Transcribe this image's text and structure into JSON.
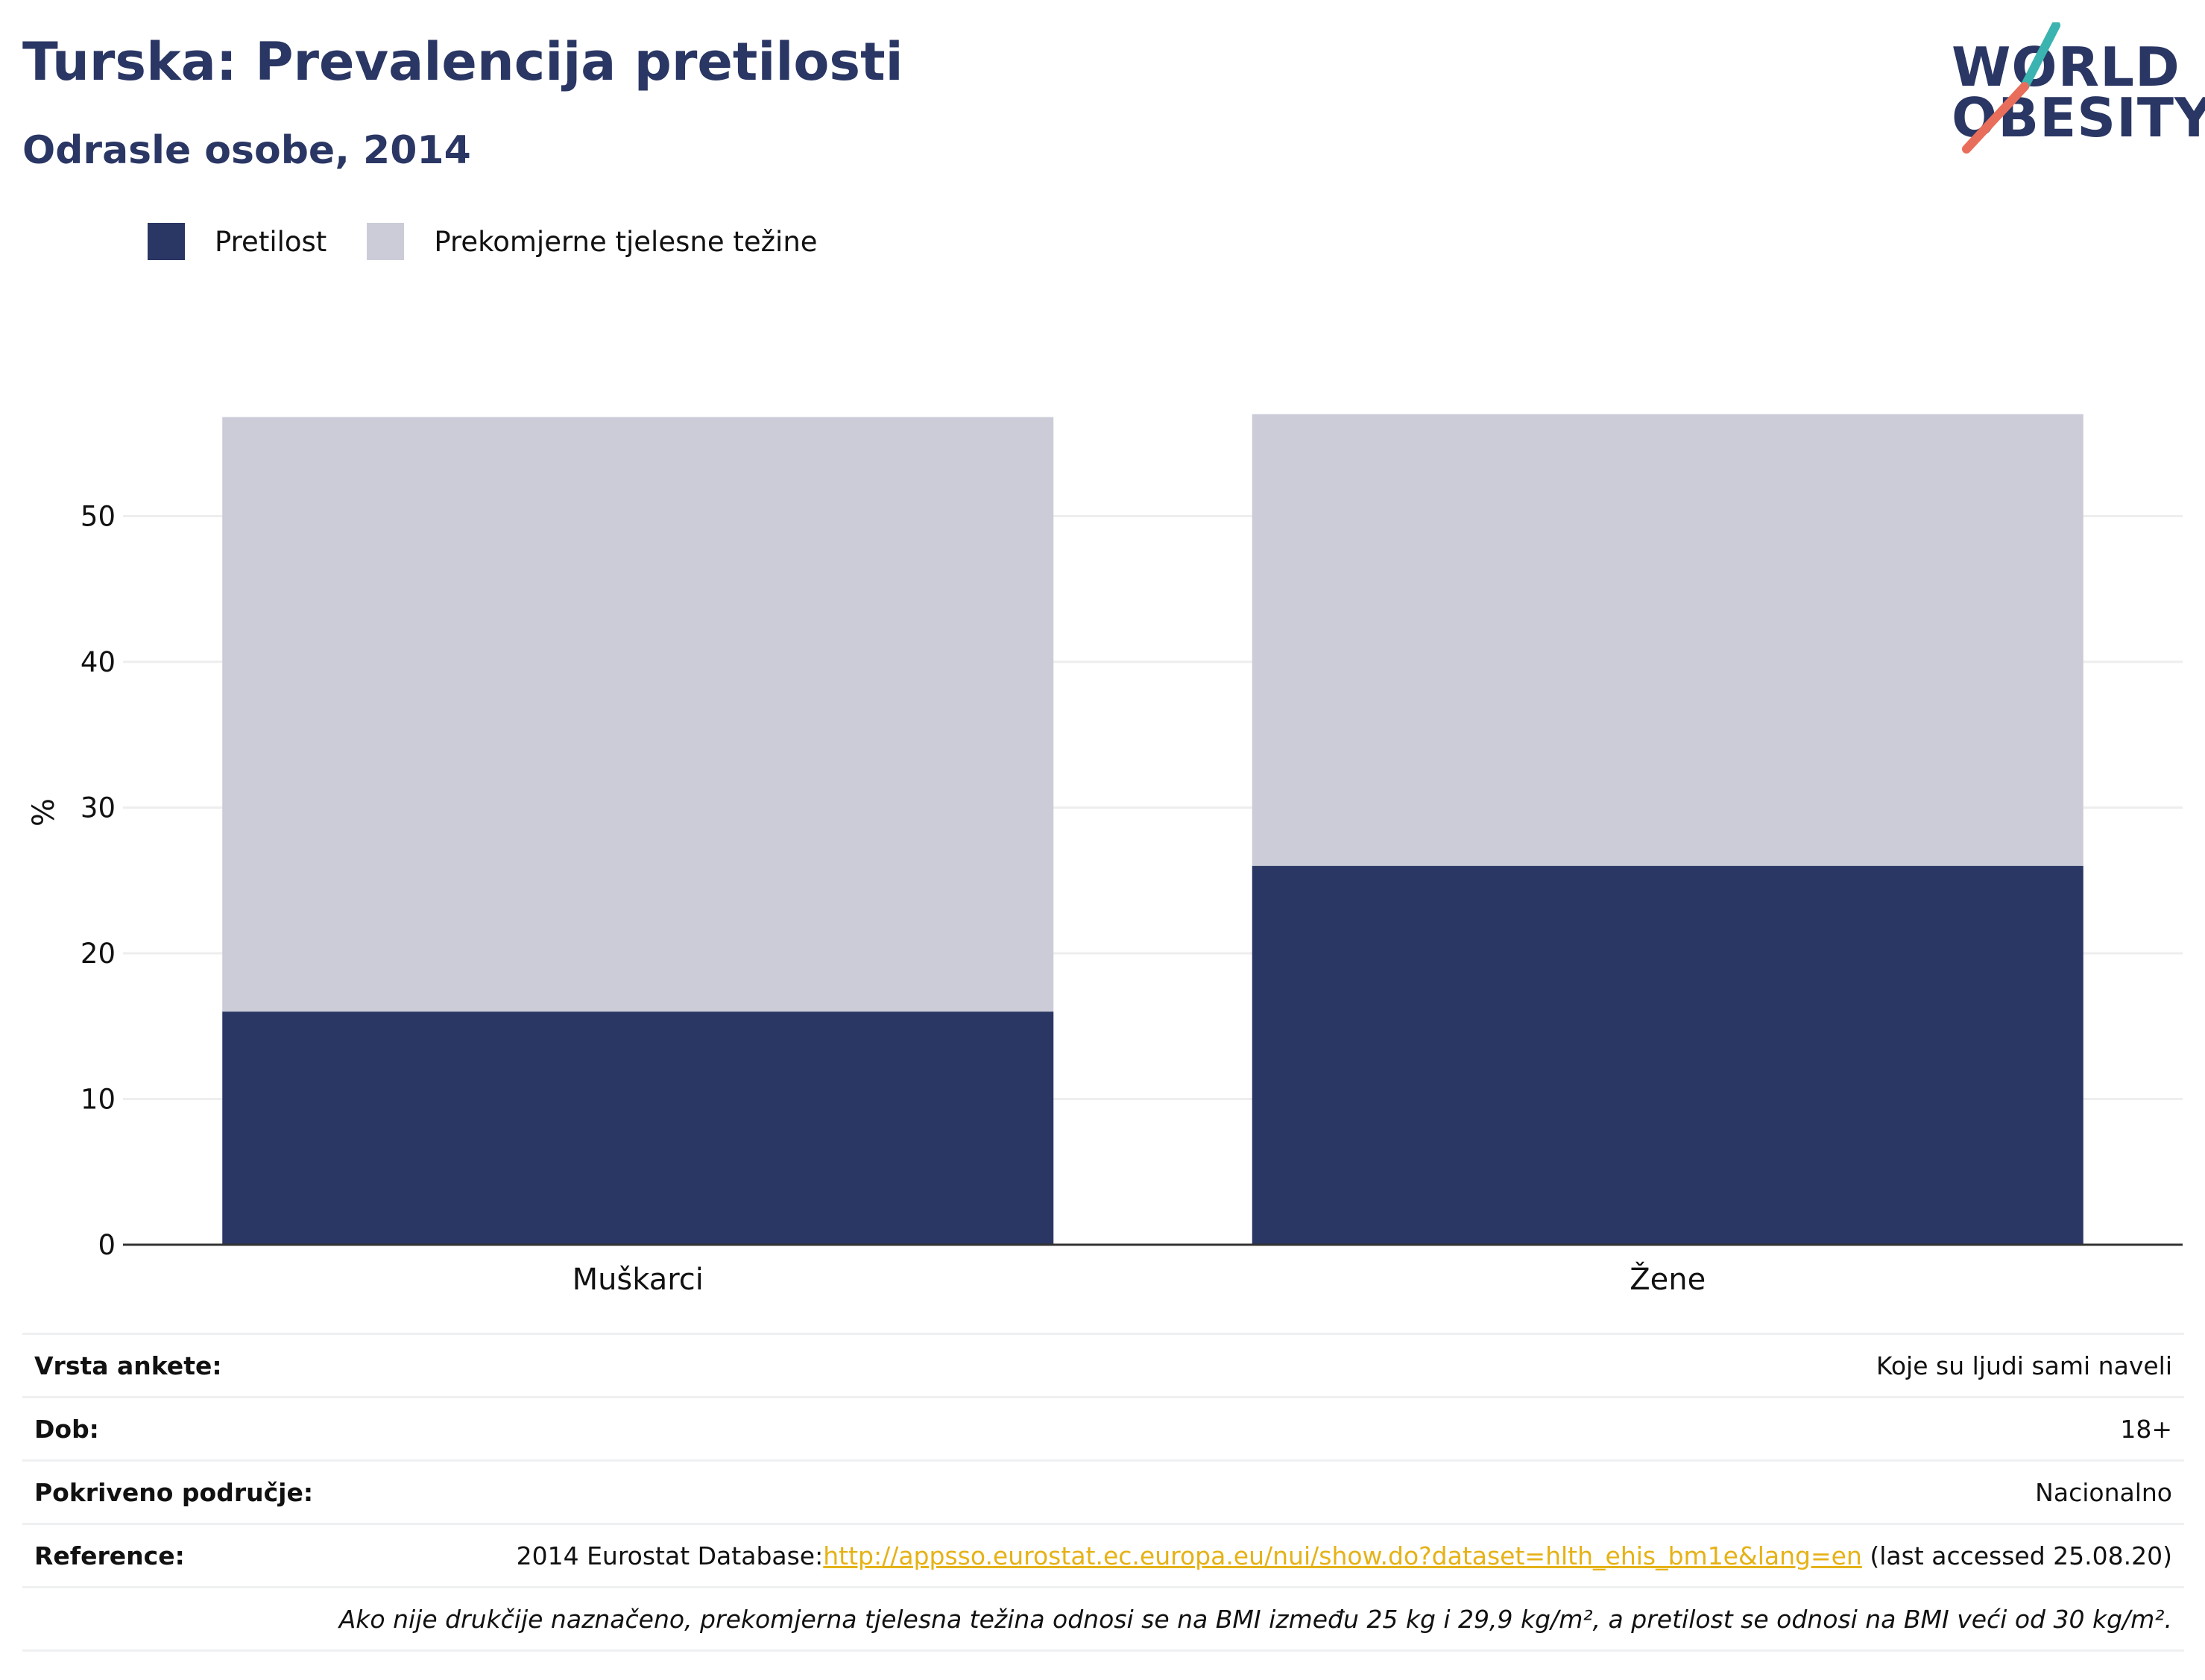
{
  "header": {
    "title": "Turska: Prevalencija pretilosti",
    "subtitle": "Odrasle osobe, 2014"
  },
  "logo": {
    "line1": "WORLD",
    "line2": "OBESITY",
    "colors": {
      "navy": "#2a3663",
      "teal": "#3bb3b0",
      "coral": "#e86e5b"
    }
  },
  "colors": {
    "obesity": "#2a3663",
    "overweight": "#cbccd8",
    "grid": "#eeeeee",
    "axis": "#333333",
    "link": "#e5b217"
  },
  "chart_data": {
    "type": "bar",
    "stacked": true,
    "categories": [
      "Muškarci",
      "Žene"
    ],
    "series": [
      {
        "name": "Pretilost",
        "values": [
          16,
          26
        ],
        "color": "#2a3663"
      },
      {
        "name": "Prekomjerne tjelesne težine",
        "values": [
          40.8,
          31
        ],
        "color": "#cbccd8"
      }
    ],
    "title": "Turska: Prevalencija pretilosti",
    "subtitle": "Odrasle osobe, 2014",
    "ylabel": "%",
    "xlabel": "",
    "ylim": [
      0,
      57
    ],
    "yticks": [
      0,
      10,
      20,
      30,
      40,
      50
    ],
    "grid": true,
    "legend_position": "top-left"
  },
  "info": {
    "survey_label": "Vrsta ankete:",
    "survey_value": "Koje su ljudi sami naveli",
    "age_label": "Dob:",
    "age_value": "18+",
    "coverage_label": "Pokriveno područje:",
    "coverage_value": "Nacionalno",
    "reference_label": "Reference:",
    "reference_prefix": "2014 Eurostat Database:",
    "reference_link": "http://appsso.eurostat.ec.europa.eu/nui/show.do?dataset=hlth_ehis_bm1e&lang=en",
    "reference_suffix": " (last accessed 25.08.20)",
    "note": "Ako nije drukčije naznačeno, prekomjerna tjelesna težina odnosi se na BMI između 25 kg i 29,9 kg/m², a pretilost se odnosi na BMI veći od 30 kg/m²."
  }
}
